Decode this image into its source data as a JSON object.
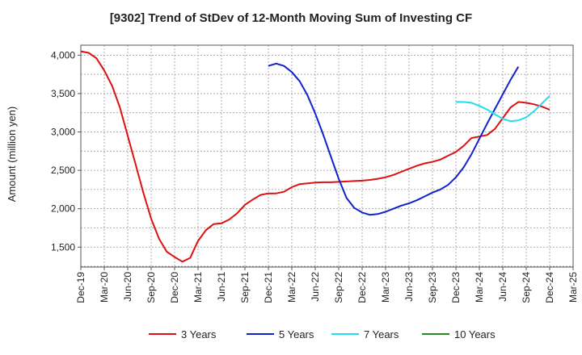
{
  "chart_data": {
    "type": "line",
    "title": "[9302]  Trend of StDev of 12-Month Moving Sum of Investing CF",
    "xlabel": "",
    "ylabel": "Amount (million yen)",
    "x_ticks": [
      "Dec-19",
      "Mar-20",
      "Jun-20",
      "Sep-20",
      "Dec-20",
      "Mar-21",
      "Jun-21",
      "Sep-21",
      "Dec-21",
      "Mar-22",
      "Jun-22",
      "Sep-22",
      "Dec-22",
      "Mar-23",
      "Jun-23",
      "Sep-23",
      "Dec-23",
      "Mar-24",
      "Jun-24",
      "Sep-24",
      "Dec-24",
      "Mar-25"
    ],
    "y_ticks": [
      1500,
      2000,
      2500,
      3000,
      3500,
      4000
    ],
    "ylim": [
      1240,
      4130
    ],
    "grid": true,
    "legend_position": "bottom",
    "series": [
      {
        "name": "3 Years",
        "color": "#dd1111",
        "start_month": 0,
        "values": [
          4050,
          4030,
          3960,
          3800,
          3600,
          3320,
          2950,
          2580,
          2210,
          1870,
          1610,
          1440,
          1370,
          1310,
          1360,
          1580,
          1720,
          1800,
          1810,
          1860,
          1940,
          2050,
          2120,
          2180,
          2200,
          2200,
          2220,
          2280,
          2320,
          2330,
          2340,
          2345,
          2345,
          2350,
          2355,
          2360,
          2365,
          2375,
          2390,
          2410,
          2440,
          2480,
          2520,
          2560,
          2590,
          2610,
          2640,
          2690,
          2740,
          2820,
          2920,
          2940,
          2960,
          3040,
          3180,
          3320,
          3390,
          3380,
          3360,
          3330,
          3290
        ]
      },
      {
        "name": "5 Years",
        "color": "#1122cc",
        "start_month": 24,
        "values": [
          3860,
          3890,
          3860,
          3780,
          3660,
          3480,
          3240,
          2970,
          2680,
          2390,
          2140,
          2010,
          1950,
          1920,
          1930,
          1960,
          2000,
          2040,
          2070,
          2110,
          2160,
          2210,
          2250,
          2310,
          2410,
          2540,
          2710,
          2910,
          3110,
          3300,
          3490,
          3680,
          3850
        ]
      },
      {
        "name": "7 Years",
        "color": "#22ddee",
        "start_month": 48,
        "values": [
          3390,
          3390,
          3380,
          3340,
          3290,
          3230,
          3170,
          3140,
          3150,
          3190,
          3270,
          3370,
          3470
        ]
      },
      {
        "name": "10 Years",
        "color": "#228b22",
        "start_month": 0,
        "values": []
      }
    ]
  }
}
